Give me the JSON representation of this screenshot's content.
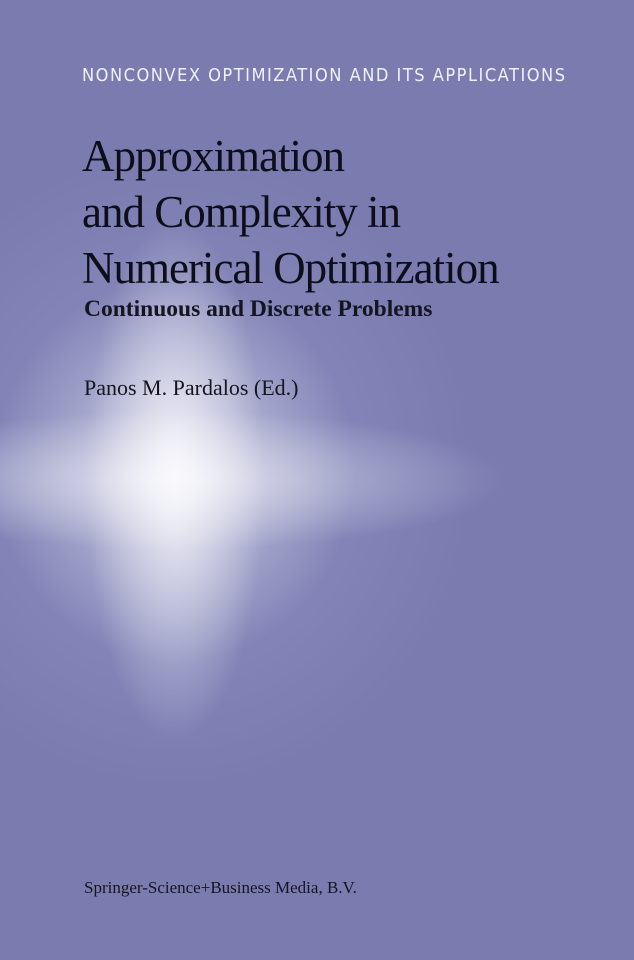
{
  "cover": {
    "series": "NONCONVEX OPTIMIZATION AND ITS APPLICATIONS",
    "title_lines": [
      "Approximation",
      "and Complexity in",
      "Numerical Optimization"
    ],
    "subtitle": "Continuous and Discrete Problems",
    "author": "Panos M. Pardalos (Ed.)",
    "publisher": "Springer-Science+Business Media, B.V.",
    "colors": {
      "background": "#7a7cb0",
      "glow": "#ffffff",
      "text": "#0e0e1a"
    }
  }
}
